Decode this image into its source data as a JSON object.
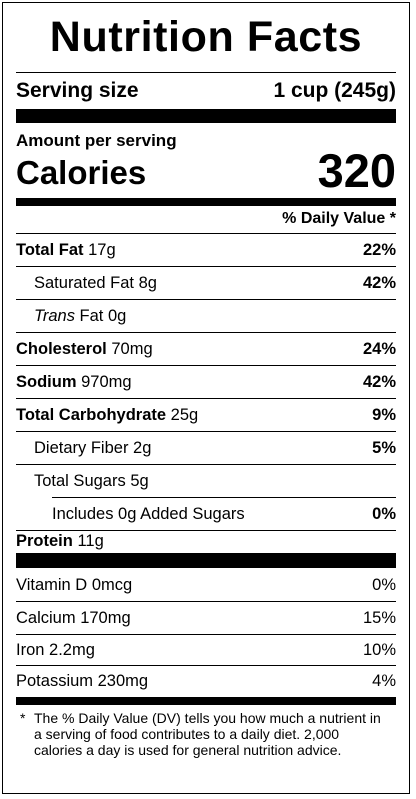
{
  "title": "Nutrition Facts",
  "serving": {
    "label": "Serving size",
    "value": "1 cup (245g)"
  },
  "amount_per_serving": "Amount per serving",
  "calories": {
    "label": "Calories",
    "value": "320"
  },
  "dv_header": "% Daily Value *",
  "nutrients": [
    {
      "name": "Total Fat",
      "amount": "17g",
      "dv": "22%"
    },
    {
      "name": "Saturated Fat",
      "amount": "8g",
      "dv": "42%"
    },
    {
      "name_italic": "Trans",
      "name": "Fat",
      "amount": "0g",
      "dv": ""
    },
    {
      "name": "Cholesterol",
      "amount": "70mg",
      "dv": "24%"
    },
    {
      "name": "Sodium",
      "amount": "970mg",
      "dv": "42%"
    },
    {
      "name": "Total Carbohydrate",
      "amount": "25g",
      "dv": "9%"
    },
    {
      "name": "Dietary Fiber",
      "amount": "2g",
      "dv": "5%"
    },
    {
      "name": "Total Sugars",
      "amount": "5g",
      "dv": ""
    },
    {
      "name": "Includes 0g Added Sugars",
      "amount": "",
      "dv": "0%"
    },
    {
      "name": "Protein",
      "amount": "11g",
      "dv": ""
    }
  ],
  "vitamins": [
    {
      "name": "Vitamin D",
      "amount": "0mcg",
      "dv": "0%"
    },
    {
      "name": "Calcium",
      "amount": "170mg",
      "dv": "15%"
    },
    {
      "name": "Iron",
      "amount": "2.2mg",
      "dv": "10%"
    },
    {
      "name": "Potassium",
      "amount": "230mg",
      "dv": "4%"
    }
  ],
  "footnote": {
    "star": "*",
    "text": "The % Daily Value (DV) tells you how much a nutrient in a serving of food contributes to a daily diet. 2,000 calories a day is used for general nutrition advice."
  }
}
